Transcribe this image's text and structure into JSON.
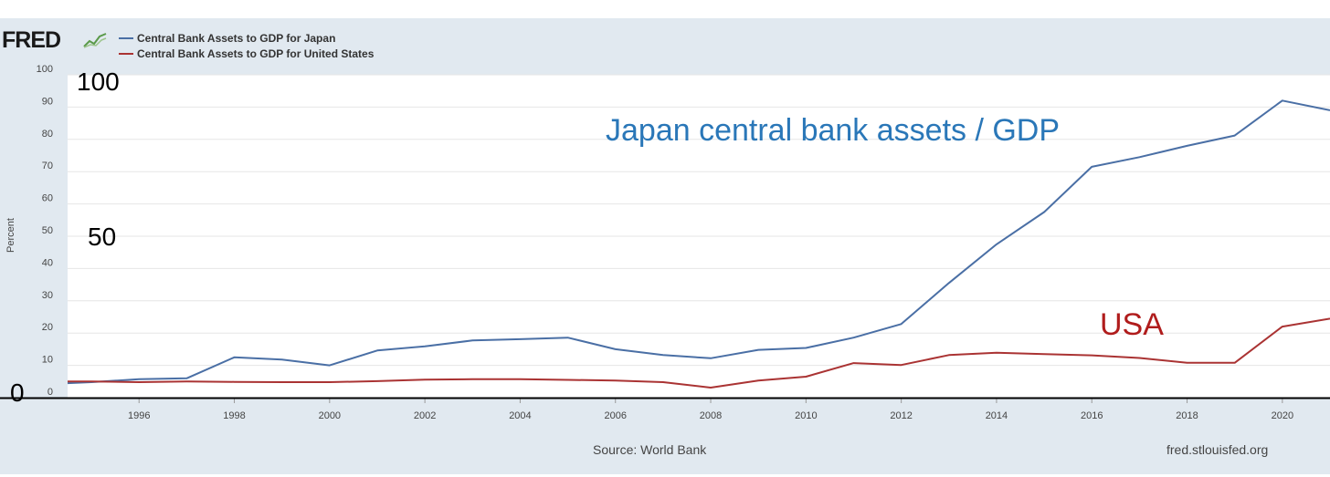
{
  "header": {
    "logo_text": "FRED"
  },
  "legend": [
    {
      "label": "Central Bank Assets to GDP for Japan",
      "color": "#4a6fa5"
    },
    {
      "label": "Central Bank Assets to GDP for United States",
      "color": "#aa3333"
    }
  ],
  "overlay_labels": {
    "top": "100",
    "middle": "50",
    "bottom": "0"
  },
  "annotations": {
    "japan": "Japan central bank assets / GDP",
    "usa": "USA"
  },
  "footer": {
    "source": "Source: World Bank",
    "site": "fred.stlouisfed.org"
  },
  "colors": {
    "japan_annotation": "#2a77b8",
    "usa_annotation": "#b01c1c",
    "grid": "#e6e6e6",
    "frame": "#e1e9f0"
  },
  "chart_data": {
    "type": "line",
    "ylabel": "Percent",
    "ylim": [
      0,
      100
    ],
    "yticks": [
      0,
      10,
      20,
      30,
      40,
      50,
      60,
      70,
      80,
      90,
      100
    ],
    "xlim": [
      1994.5,
      2021
    ],
    "xticks": [
      1996,
      1998,
      2000,
      2002,
      2004,
      2006,
      2008,
      2010,
      2012,
      2014,
      2016,
      2018,
      2020
    ],
    "grid": true,
    "legend_position": "top-left",
    "x": [
      1994.5,
      1995,
      1996,
      1997,
      1998,
      1999,
      2000,
      2001,
      2002,
      2003,
      2004,
      2005,
      2006,
      2007,
      2008,
      2009,
      2010,
      2011,
      2012,
      2013,
      2014,
      2015,
      2016,
      2017,
      2018,
      2019,
      2020,
      2021
    ],
    "series": [
      {
        "name": "Central Bank Assets to GDP for Japan",
        "color": "#4a6fa5",
        "values": [
          4.5,
          4.8,
          5.7,
          6.0,
          12.5,
          11.8,
          10.0,
          14.6,
          15.9,
          17.7,
          18.1,
          18.6,
          15.0,
          13.2,
          12.2,
          14.8,
          15.4,
          18.6,
          22.8,
          35.5,
          47.5,
          57.5,
          71.5,
          74.5,
          78.0,
          81.2,
          92.0,
          89.0
        ]
      },
      {
        "name": "Central Bank Assets to GDP for United States",
        "color": "#aa3333",
        "values": [
          5.0,
          5.0,
          4.8,
          5.0,
          4.9,
          4.8,
          4.8,
          5.1,
          5.6,
          5.7,
          5.7,
          5.5,
          5.3,
          4.8,
          3.1,
          5.3,
          6.5,
          10.7,
          10.1,
          13.2,
          13.9,
          13.5,
          13.1,
          12.3,
          10.8,
          10.8,
          22.0,
          24.5
        ]
      }
    ]
  }
}
